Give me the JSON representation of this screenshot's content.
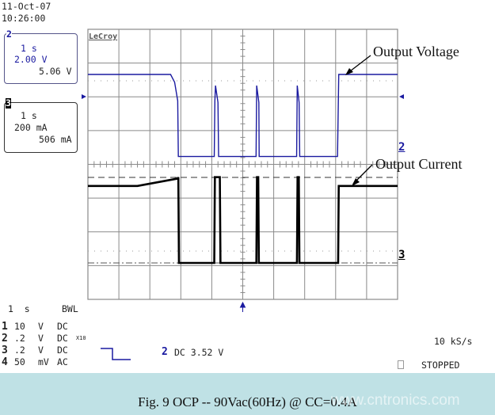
{
  "header": {
    "date": "11-Oct-07",
    "time": "10:26:00"
  },
  "channel2_box": {
    "id": "2",
    "timebase": "1 s",
    "scale": "2.00 V",
    "measure": "5.06 V"
  },
  "channel3_box": {
    "id": "3",
    "timebase": "1 s",
    "scale": "200 mA",
    "measure": "506 mA"
  },
  "brand": "LeCroy",
  "annotations": {
    "voltage": "Output Voltage",
    "current": "Output Current"
  },
  "markers": {
    "ch2": "2",
    "ch3": "3"
  },
  "footer": {
    "timebase": "1  s",
    "bwl": "BWL",
    "channels": [
      {
        "id": "1",
        "scale": "10",
        "unit": "V",
        "coupling": "DC",
        "extra": ""
      },
      {
        "id": "2",
        "scale": ".2",
        "unit": "V",
        "coupling": "DC",
        "extra": "X10"
      },
      {
        "id": "3",
        "scale": ".2",
        "unit": "V",
        "coupling": "DC",
        "extra": ""
      },
      {
        "id": "4",
        "scale": "50",
        "unit": "mV",
        "coupling": "AC",
        "extra": ""
      }
    ],
    "trigger_channel": "2",
    "trigger_info": "DC 3.52 V",
    "sample_rate": "10 kS/s",
    "status": "STOPPED"
  },
  "caption": "Fig. 9  OCP  -- 90Vac(60Hz) @ CC=0.4A",
  "watermark": "www.cntronics.com",
  "colors": {
    "voltage_trace": "#1a1aa0",
    "current_trace": "#000000",
    "grid": "#8a8a8a",
    "caption_bg": "#bfe1e5"
  },
  "chart_data": {
    "type": "line",
    "title": "",
    "x_unit": "s",
    "x_range": [
      0,
      10
    ],
    "x_divisions": 10,
    "time_per_div": "1 s",
    "grid": true,
    "series": [
      {
        "name": "Output Voltage",
        "unit": "V",
        "volts_per_div": 2,
        "points": [
          [
            0,
            5.06
          ],
          [
            2.67,
            5.06
          ],
          [
            2.8,
            4.6
          ],
          [
            2.9,
            3.5
          ],
          [
            2.92,
            0.2
          ],
          [
            4.08,
            0.2
          ],
          [
            4.1,
            3.5
          ],
          [
            4.12,
            4.4
          ],
          [
            4.2,
            3.4
          ],
          [
            4.22,
            0.2
          ],
          [
            5.43,
            0.2
          ],
          [
            5.45,
            4.4
          ],
          [
            5.52,
            3.4
          ],
          [
            5.53,
            0.2
          ],
          [
            6.74,
            0.2
          ],
          [
            6.76,
            4.4
          ],
          [
            6.82,
            3.4
          ],
          [
            6.84,
            0.2
          ],
          [
            8.06,
            0.2
          ],
          [
            8.1,
            5.06
          ],
          [
            10,
            5.06
          ]
        ]
      },
      {
        "name": "Output Current",
        "unit": "mA",
        "ma_per_div": 200,
        "points": [
          [
            0,
            456
          ],
          [
            1.6,
            456
          ],
          [
            2.9,
            500
          ],
          [
            2.92,
            508
          ],
          [
            2.94,
            0
          ],
          [
            4.08,
            0
          ],
          [
            4.1,
            508
          ],
          [
            4.26,
            508
          ],
          [
            4.28,
            0
          ],
          [
            5.44,
            0
          ],
          [
            5.46,
            508
          ],
          [
            5.5,
            508
          ],
          [
            5.52,
            0
          ],
          [
            6.75,
            0
          ],
          [
            6.77,
            508
          ],
          [
            6.81,
            508
          ],
          [
            6.83,
            0
          ],
          [
            8.08,
            0
          ],
          [
            8.1,
            456
          ],
          [
            10,
            456
          ]
        ]
      }
    ]
  }
}
